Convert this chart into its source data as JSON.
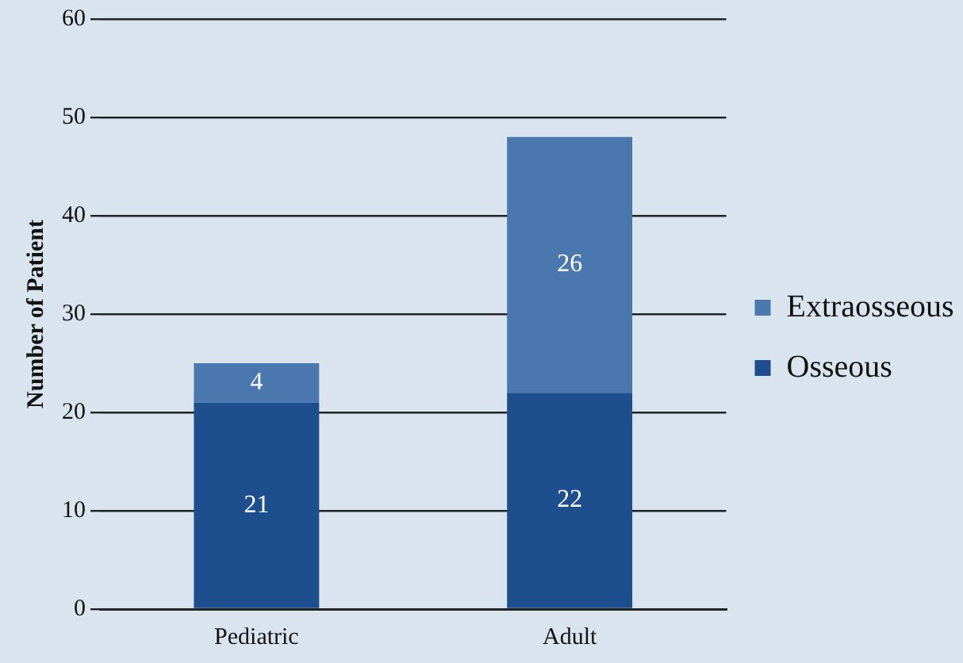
{
  "chart_data": {
    "type": "bar",
    "stacked": true,
    "ylabel": "Number of Patient",
    "categories": [
      "Pediatric",
      "Adult"
    ],
    "series": [
      {
        "name": "Osseous",
        "color": "#1d4f8f",
        "values": [
          21,
          22
        ]
      },
      {
        "name": "Extraosseous",
        "color": "#4a78ae",
        "values": [
          4,
          26
        ]
      }
    ],
    "ylim": [
      0,
      60
    ],
    "yticks": [
      0,
      10,
      20,
      30,
      40,
      50,
      60
    ],
    "grid": "y",
    "legend": "right",
    "data_labels": true
  }
}
